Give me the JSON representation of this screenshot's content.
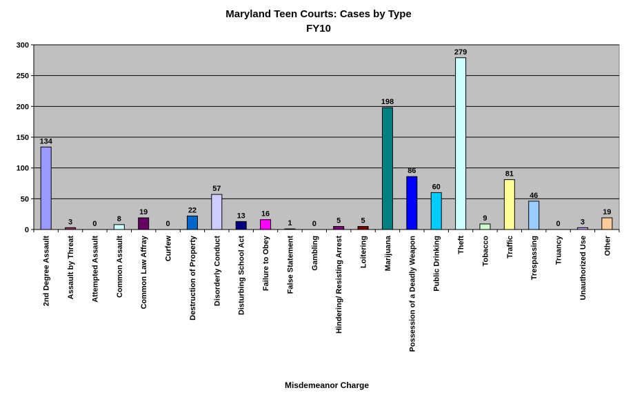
{
  "chart_data": {
    "type": "bar",
    "title": "Maryland Teen Courts: Cases by Type",
    "subtitle": "FY10",
    "xlabel": "Misdemeanor Charge",
    "ylabel": "",
    "ylim": [
      0,
      300
    ],
    "yticks": [
      0,
      50,
      100,
      150,
      200,
      250,
      300
    ],
    "grid": true,
    "legend": "none",
    "plot_background": "#c0c0c0",
    "categories": [
      "2nd Degree Assault",
      "Assault by Threat",
      "Attempted Assault",
      "Common Assault",
      "Common Law Affray",
      "Curfew",
      "Destruction of Property",
      "Disorderly Conduct",
      "Disturbing School Act",
      "Failure to Obey",
      "False Statement",
      "Gambling",
      "Hindering/ Resisting Arrest",
      "Loitering",
      "Marijuana",
      "Possession of a Deadly Weapon",
      "Public Drinking",
      "Theft",
      "Tobacco",
      "Traffic",
      "Trespassing",
      "Truancy",
      "Unauthorized Use",
      "Other"
    ],
    "values": [
      134,
      3,
      0,
      8,
      19,
      0,
      22,
      57,
      13,
      16,
      1,
      0,
      5,
      5,
      198,
      86,
      60,
      279,
      9,
      81,
      46,
      0,
      3,
      19
    ],
    "colors": [
      "#9999ff",
      "#993366",
      "#ffffcc",
      "#ccffff",
      "#660066",
      "#ff8080",
      "#0066cc",
      "#ccccff",
      "#000080",
      "#ff00ff",
      "#ffff00",
      "#00ffff",
      "#800080",
      "#800000",
      "#008080",
      "#0000ff",
      "#00ccff",
      "#ccffff",
      "#ccffcc",
      "#ffff99",
      "#99ccff",
      "#ff99cc",
      "#cc99ff",
      "#ffcc99"
    ]
  }
}
